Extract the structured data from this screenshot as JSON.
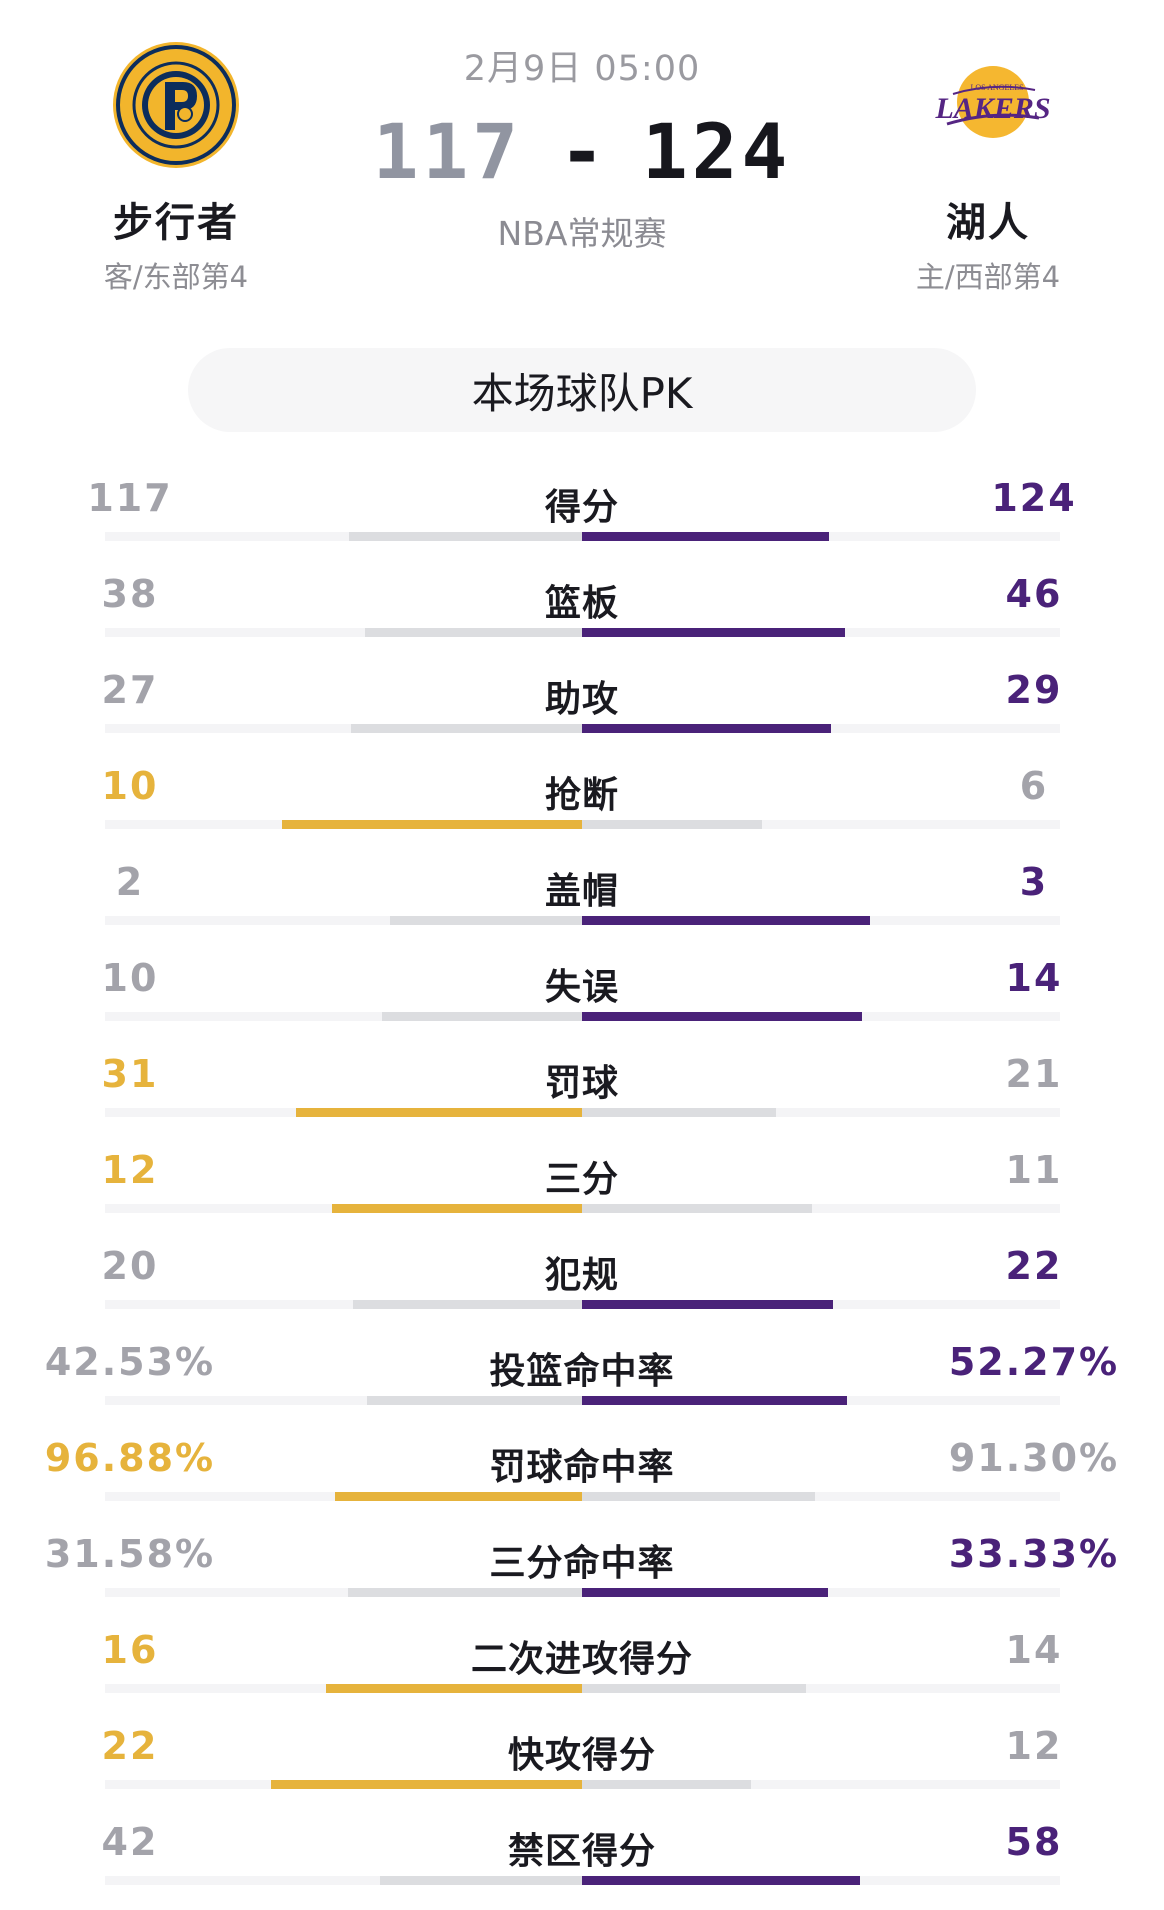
{
  "game": {
    "datetime": "2月9日 05:00",
    "type": "NBA常规赛",
    "away_score": "117",
    "home_score": "124",
    "dash": "-"
  },
  "away_team": {
    "name": "步行者",
    "rank": "客/东部第4",
    "logo_icon": "pacers-logo-icon",
    "color": "#e6b33c"
  },
  "home_team": {
    "name": "湖人",
    "rank": "主/西部第4",
    "logo_icon": "lakers-logo-icon",
    "color": "#4a2279"
  },
  "pk_title": "本场球队PK",
  "colors": {
    "away_win": "#e6b33c",
    "home_win": "#4a2279",
    "neutral": "#a3a3aa",
    "bar_neutral": "#dcdde0"
  },
  "stats": [
    {
      "label": "得分",
      "away": "117",
      "home": "124",
      "away_num": 117,
      "home_num": 124,
      "winner": "home"
    },
    {
      "label": "篮板",
      "away": "38",
      "home": "46",
      "away_num": 38,
      "home_num": 46,
      "winner": "home"
    },
    {
      "label": "助攻",
      "away": "27",
      "home": "29",
      "away_num": 27,
      "home_num": 29,
      "winner": "home"
    },
    {
      "label": "抢断",
      "away": "10",
      "home": "6",
      "away_num": 10,
      "home_num": 6,
      "winner": "away"
    },
    {
      "label": "盖帽",
      "away": "2",
      "home": "3",
      "away_num": 2,
      "home_num": 3,
      "winner": "home"
    },
    {
      "label": "失误",
      "away": "10",
      "home": "14",
      "away_num": 10,
      "home_num": 14,
      "winner": "home"
    },
    {
      "label": "罚球",
      "away": "31",
      "home": "21",
      "away_num": 31,
      "home_num": 21,
      "winner": "away"
    },
    {
      "label": "三分",
      "away": "12",
      "home": "11",
      "away_num": 12,
      "home_num": 11,
      "winner": "away"
    },
    {
      "label": "犯规",
      "away": "20",
      "home": "22",
      "away_num": 20,
      "home_num": 22,
      "winner": "home"
    },
    {
      "label": "投篮命中率",
      "away": "42.53%",
      "home": "52.27%",
      "away_num": 42.53,
      "home_num": 52.27,
      "winner": "home"
    },
    {
      "label": "罚球命中率",
      "away": "96.88%",
      "home": "91.30%",
      "away_num": 96.88,
      "home_num": 91.3,
      "winner": "away"
    },
    {
      "label": "三分命中率",
      "away": "31.58%",
      "home": "33.33%",
      "away_num": 31.58,
      "home_num": 33.33,
      "winner": "home"
    },
    {
      "label": "二次进攻得分",
      "away": "16",
      "home": "14",
      "away_num": 16,
      "home_num": 14,
      "winner": "away"
    },
    {
      "label": "快攻得分",
      "away": "22",
      "home": "12",
      "away_num": 22,
      "home_num": 12,
      "winner": "away"
    },
    {
      "label": "禁区得分",
      "away": "42",
      "home": "58",
      "away_num": 42,
      "home_num": 58,
      "winner": "home"
    }
  ]
}
